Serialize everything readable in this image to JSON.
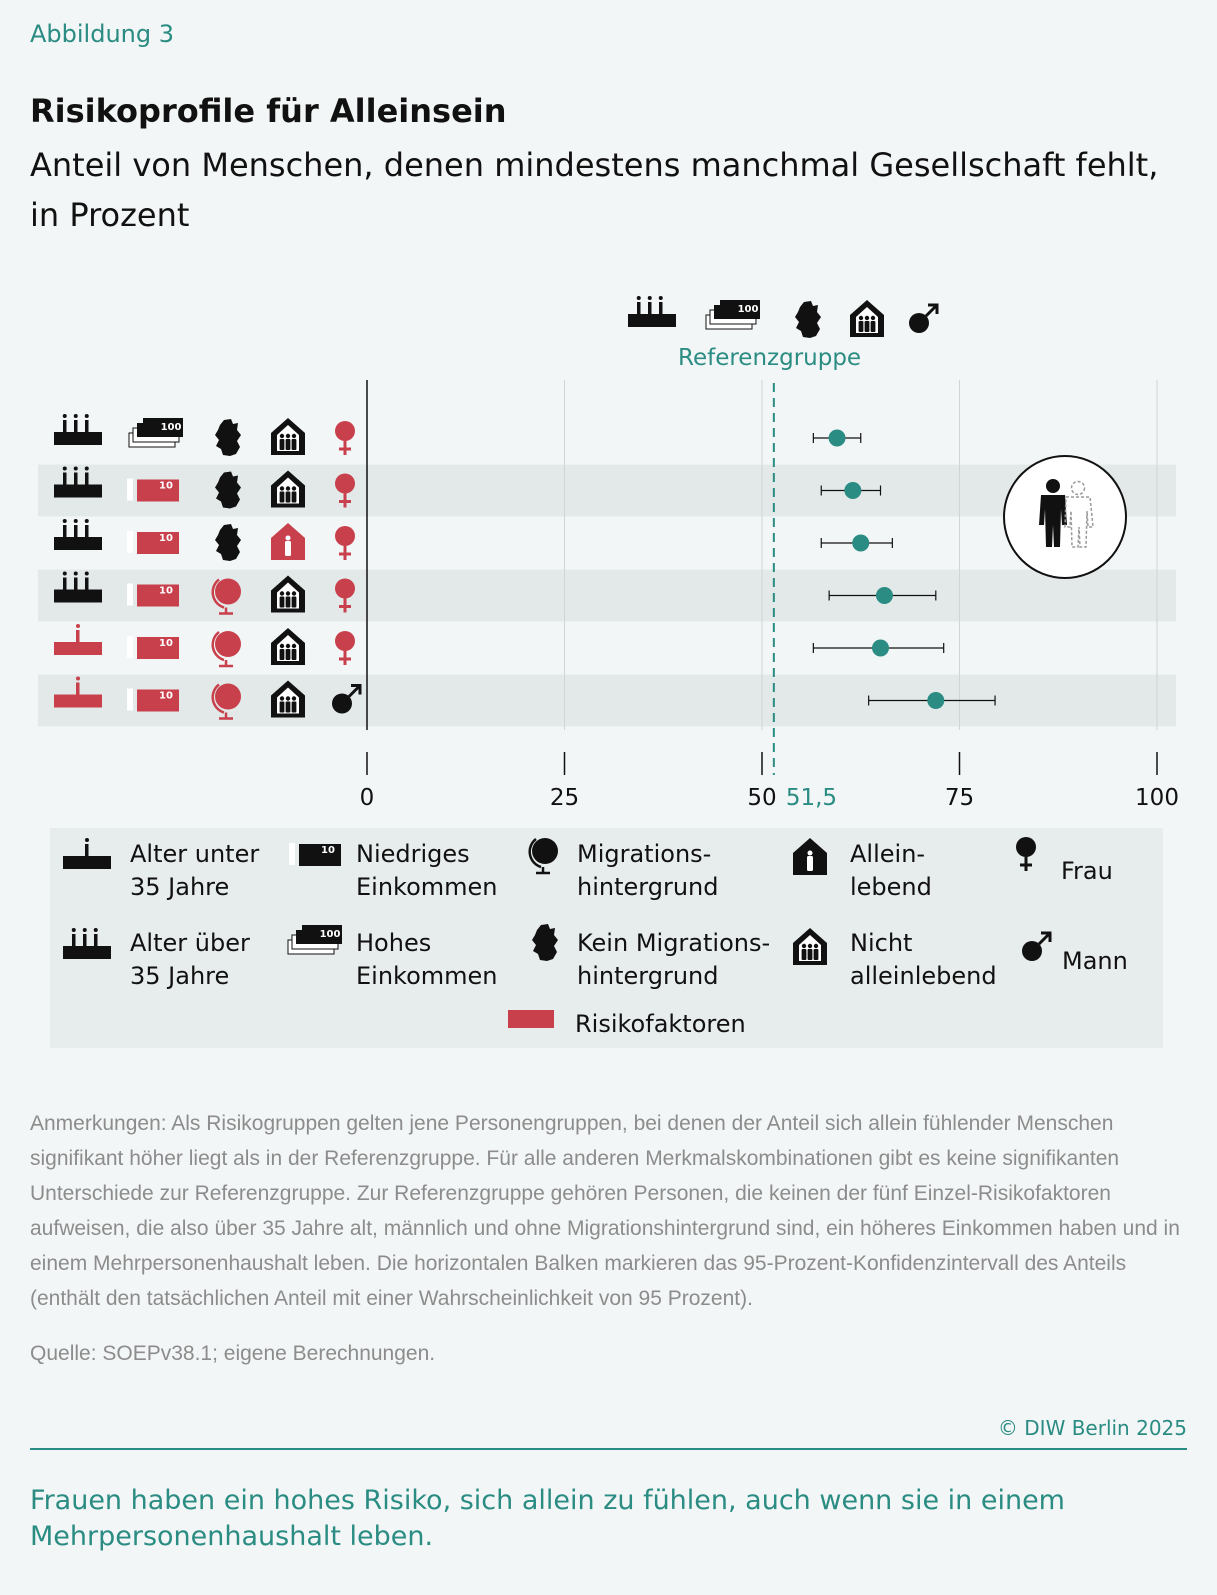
{
  "header": {
    "figure_label": "Abbildung 3",
    "title": "Risikoprofile für Alleinsein",
    "subtitle": "Anteil von Menschen, denen mindestens manchmal Gesellschaft fehlt, in Prozent"
  },
  "reference": {
    "label": "Referenzgruppe",
    "value_label": "51,5"
  },
  "colors": {
    "accent": "#2a8c83",
    "risk": "#c8404c",
    "band": "#e3e9e9",
    "black": "#111111"
  },
  "chart_data": {
    "type": "dot-interval",
    "xlim": [
      0,
      100
    ],
    "xticks": [
      0,
      25,
      50,
      75,
      100
    ],
    "xtick_labels": [
      "0",
      "25",
      "50",
      "75",
      "100"
    ],
    "reference_value": 51.5,
    "grid": true,
    "rows": [
      {
        "age": "over35",
        "income": "high",
        "migration": "no",
        "household": "multi",
        "sex": "female",
        "value": 59.5,
        "ci": [
          56.5,
          62.5
        ]
      },
      {
        "age": "over35",
        "income": "low",
        "migration": "no",
        "household": "multi",
        "sex": "female",
        "value": 61.5,
        "ci": [
          57.5,
          65
        ]
      },
      {
        "age": "over35",
        "income": "low",
        "migration": "no",
        "household": "single",
        "sex": "female",
        "value": 62.5,
        "ci": [
          57.5,
          66.5
        ]
      },
      {
        "age": "over35",
        "income": "low",
        "migration": "yes",
        "household": "multi",
        "sex": "female",
        "value": 65.5,
        "ci": [
          58.5,
          72
        ]
      },
      {
        "age": "under35",
        "income": "low",
        "migration": "yes",
        "household": "multi",
        "sex": "female",
        "value": 65,
        "ci": [
          56.5,
          73
        ]
      },
      {
        "age": "under35",
        "income": "low",
        "migration": "yes",
        "household": "multi",
        "sex": "male",
        "value": 72,
        "ci": [
          63.5,
          79.5
        ]
      }
    ],
    "reference_profile": {
      "age": "over35",
      "income": "high",
      "migration": "no",
      "household": "multi",
      "sex": "male"
    }
  },
  "legend": {
    "items": [
      {
        "icon": "age-under35",
        "label": "Alter unter\n35 Jahre"
      },
      {
        "icon": "income-low",
        "label": "Niedriges\nEinkommen"
      },
      {
        "icon": "migration-yes",
        "label": "Migrations-\nhintergrund"
      },
      {
        "icon": "household-single",
        "label": "Allein-\nlebend"
      },
      {
        "icon": "female",
        "label": "Frau"
      },
      {
        "icon": "age-over35",
        "label": "Alter über\n35 Jahre"
      },
      {
        "icon": "income-high",
        "label": "Hohes\nEinkommen"
      },
      {
        "icon": "migration-no",
        "label": "Kein Migrations-\nhintergrund"
      },
      {
        "icon": "household-multi",
        "label": "Nicht\nalleinlebend"
      },
      {
        "icon": "male",
        "label": "Mann"
      }
    ],
    "risk_label": "Risikofaktoren",
    "banknote_small": "10",
    "banknote_large": "100"
  },
  "notes": "Anmerkungen: Als Risikogruppen gelten jene Personengruppen, bei denen der Anteil sich allein fühlender Menschen signifikant höher liegt als in der Referenzgruppe. Für alle anderen Merkmalskombinationen gibt es keine signifikanten Unterschiede zur Referenzgruppe. Zur Referenzgruppe gehören Personen, die keinen der fünf Einzel-Risikofaktoren aufweisen, die also über 35 Jahre alt, männlich und ohne Migrationshintergrund sind, ein höheres Einkommen haben und in einem Mehrpersonenhaushalt leben. Die horizontalen Balken markieren das 95-Prozent-Konfidenzintervall des Anteils (enthält den tatsächlichen Anteil mit einer Wahrscheinlichkeit von 95 Prozent).",
  "source": "Quelle: SOEPv38.1; eigene Berechnungen.",
  "copyright": "© DIW Berlin 2025",
  "tagline": "Frauen haben ein hohes Risiko, sich allein zu fühlen, auch wenn sie in einem Mehrpersonenhaushalt leben."
}
